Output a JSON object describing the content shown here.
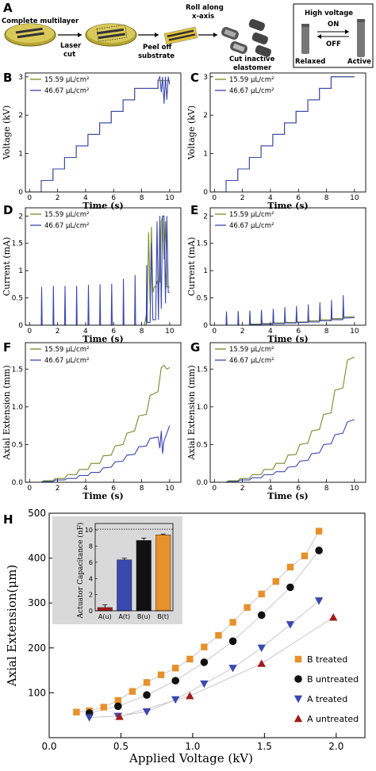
{
  "colors": {
    "green": "#7a8a2a",
    "blue": "#3a48b0",
    "orange": "#e8902a",
    "black": "#111111",
    "red": "#a01c1c",
    "inset_bg": "#d9d9d9"
  },
  "schematic": {
    "letter": "A",
    "complete_multilayer": "Complete multilayer",
    "laser": "Laser",
    "cut": "cut",
    "peel_off": "Peel off",
    "substrate": "substrate",
    "roll_along": "Roll along",
    "x_axis": "x-axis",
    "cut_inactive": "Cut inactive",
    "elastomer": "elastomer",
    "high_voltage": "High voltage",
    "on": "ON",
    "off": "OFF",
    "relaxed": "Relaxed",
    "active": "Active"
  },
  "legend": {
    "s1": "15.59 μL/cm²",
    "s2": "46.67 μL/cm²"
  },
  "chart_data": [
    {
      "panel": "B",
      "type": "line",
      "xlabel": "Time (s)",
      "ylabel": "Voltage (kV)",
      "xlim": [
        -0.3,
        10.8
      ],
      "ylim": [
        0,
        3.1
      ],
      "xticks": [
        0,
        2,
        4,
        6,
        8,
        10
      ],
      "yticks": [
        0,
        1,
        2,
        3
      ],
      "series": [
        {
          "name": "15.59 μL/cm²",
          "x": [
            0,
            0.83,
            0.83,
            1.67,
            1.67,
            2.5,
            2.5,
            3.33,
            3.33,
            4.17,
            4.17,
            5.0,
            5.0,
            5.83,
            5.83,
            6.67,
            6.67,
            7.5,
            7.5,
            8.33,
            8.33,
            9.17,
            9.17,
            10.0
          ],
          "y": [
            0,
            0,
            0.3,
            0.3,
            0.6,
            0.6,
            0.9,
            0.9,
            1.2,
            1.2,
            1.5,
            1.5,
            1.8,
            1.8,
            2.1,
            2.1,
            2.4,
            2.4,
            2.7,
            2.7,
            2.7,
            2.7,
            2.9,
            2.9
          ]
        },
        {
          "name": "46.67 μL/cm²",
          "x": [
            0,
            0.83,
            0.83,
            1.67,
            1.67,
            2.5,
            2.5,
            3.33,
            3.33,
            4.17,
            4.17,
            5.0,
            5.0,
            5.83,
            5.83,
            6.67,
            6.67,
            7.5,
            7.5,
            8.33,
            8.33,
            9.17,
            9.17,
            9.3,
            9.4,
            9.5,
            9.6,
            9.7,
            9.8,
            9.9,
            10.0
          ],
          "y": [
            0,
            0,
            0.3,
            0.3,
            0.6,
            0.6,
            0.9,
            0.9,
            1.2,
            1.2,
            1.5,
            1.5,
            1.8,
            1.8,
            2.1,
            2.1,
            2.4,
            2.4,
            2.7,
            2.7,
            2.7,
            2.7,
            2.9,
            3.0,
            2.6,
            3.0,
            2.3,
            3.0,
            2.4,
            3.0,
            2.8
          ]
        }
      ]
    },
    {
      "panel": "C",
      "type": "line",
      "xlabel": "Time (s)",
      "ylabel": "Voltage (kV)",
      "xlim": [
        -0.3,
        10.8
      ],
      "ylim": [
        0,
        3.1
      ],
      "xticks": [
        0,
        2,
        4,
        6,
        8,
        10
      ],
      "yticks": [
        0,
        1,
        2,
        3
      ],
      "series": [
        {
          "name": "15.59 μL/cm²",
          "x": [
            0,
            0.83,
            0.83,
            1.67,
            1.67,
            2.5,
            2.5,
            3.33,
            3.33,
            4.17,
            4.17,
            5.0,
            5.0,
            5.83,
            5.83,
            6.67,
            6.67,
            7.5,
            7.5,
            8.33,
            8.33,
            9.17,
            9.17,
            10.0
          ],
          "y": [
            0,
            0,
            0.3,
            0.3,
            0.6,
            0.6,
            0.9,
            0.9,
            1.2,
            1.2,
            1.5,
            1.5,
            1.8,
            1.8,
            2.1,
            2.1,
            2.4,
            2.4,
            2.7,
            2.7,
            3.0,
            3.0,
            3.0,
            3.0
          ]
        },
        {
          "name": "46.67 μL/cm²",
          "x": [
            0,
            0.83,
            0.83,
            1.67,
            1.67,
            2.5,
            2.5,
            3.33,
            3.33,
            4.17,
            4.17,
            5.0,
            5.0,
            5.83,
            5.83,
            6.67,
            6.67,
            7.5,
            7.5,
            8.33,
            8.33,
            9.17,
            9.17,
            10.0
          ],
          "y": [
            0,
            0,
            0.3,
            0.3,
            0.6,
            0.6,
            0.9,
            0.9,
            1.2,
            1.2,
            1.5,
            1.5,
            1.8,
            1.8,
            2.1,
            2.1,
            2.4,
            2.4,
            2.7,
            2.7,
            3.0,
            3.0,
            3.0,
            3.0
          ]
        }
      ]
    },
    {
      "panel": "D",
      "type": "line",
      "xlabel": "Time (s)",
      "ylabel": "Current (mA)",
      "xlim": [
        -0.3,
        10.8
      ],
      "ylim": [
        0,
        2.15
      ],
      "xticks": [
        0,
        2,
        4,
        6,
        8,
        10
      ],
      "yticks": [
        0,
        0.5,
        1.0,
        1.5,
        2.0
      ],
      "series": [
        {
          "name": "15.59 μL/cm²",
          "x": [
            0,
            8.2,
            8.4,
            8.5,
            8.6,
            8.7,
            8.8,
            8.9,
            9.0,
            9.1,
            9.2,
            9.3,
            9.4,
            9.5,
            9.6,
            9.7,
            9.8,
            9.9,
            10.0
          ],
          "y": [
            0,
            0,
            0.3,
            1.7,
            0.4,
            1.8,
            0.6,
            0.7,
            0.7,
            0.8,
            0.75,
            0.8,
            1.9,
            2.0,
            1.2,
            1.9,
            0.7,
            0.7,
            0.7
          ]
        },
        {
          "name": "46.67 μL/cm²",
          "x": [
            0,
            0.83,
            0.86,
            0.9,
            1.67,
            1.7,
            1.74,
            2.5,
            2.53,
            2.57,
            3.33,
            3.36,
            3.4,
            4.17,
            4.2,
            4.24,
            5.0,
            5.03,
            5.07,
            5.83,
            5.86,
            5.9,
            6.67,
            6.7,
            6.74,
            7.5,
            7.53,
            7.57,
            8.33,
            8.36,
            8.4,
            8.6,
            8.7,
            8.8,
            9.0,
            9.1,
            9.2,
            9.3,
            9.4,
            9.5,
            9.6,
            9.7,
            9.8,
            9.9,
            10.0
          ],
          "y": [
            0,
            0,
            0.7,
            0,
            0,
            0.72,
            0,
            0,
            0.72,
            0,
            0,
            0.72,
            0,
            0,
            0.74,
            0,
            0,
            0.75,
            0,
            0,
            0.76,
            0,
            0,
            0.85,
            0,
            0,
            0.92,
            0,
            0,
            1.1,
            0.05,
            0.05,
            1.5,
            0.1,
            0.1,
            1.9,
            0.1,
            2.0,
            0.3,
            2.0,
            2.0,
            0.4,
            2.0,
            0.6,
            0.6
          ]
        }
      ]
    },
    {
      "panel": "E",
      "type": "line",
      "xlabel": "Time (s)",
      "ylabel": "Current (mA)",
      "xlim": [
        -0.3,
        10.8
      ],
      "ylim": [
        0,
        2.15
      ],
      "xticks": [
        0,
        2,
        4,
        6,
        8,
        10
      ],
      "yticks": [
        0,
        0.5,
        1.0,
        1.5,
        2.0
      ],
      "series": [
        {
          "name": "15.59 μL/cm²",
          "x": [
            0,
            0.83,
            0.86,
            0.9,
            1.67,
            1.7,
            1.74,
            2.5,
            2.53,
            2.57,
            3.33,
            3.36,
            3.4,
            4.17,
            4.2,
            4.24,
            5.0,
            5.03,
            5.07,
            5.83,
            5.86,
            5.9,
            6.67,
            6.7,
            6.74,
            7.5,
            7.53,
            7.57,
            8.33,
            8.36,
            8.4,
            9.17,
            9.2,
            9.24,
            10.0
          ],
          "y": [
            0,
            0,
            0.22,
            0,
            0,
            0.23,
            0,
            0,
            0.23,
            0.02,
            0.02,
            0.24,
            0.03,
            0.03,
            0.25,
            0.04,
            0.04,
            0.27,
            0.05,
            0.05,
            0.28,
            0.06,
            0.06,
            0.3,
            0.08,
            0.08,
            0.33,
            0.1,
            0.1,
            0.36,
            0.12,
            0.12,
            0.42,
            0.15,
            0.16
          ]
        },
        {
          "name": "46.67 μL/cm²",
          "x": [
            0,
            0.83,
            0.86,
            0.9,
            1.67,
            1.7,
            1.74,
            2.5,
            2.53,
            2.57,
            3.33,
            3.36,
            3.4,
            4.17,
            4.2,
            4.24,
            5.0,
            5.03,
            5.07,
            5.83,
            5.86,
            5.9,
            6.67,
            6.7,
            6.74,
            7.5,
            7.53,
            7.57,
            8.33,
            8.36,
            8.4,
            9.17,
            9.2,
            9.24,
            10.0
          ],
          "y": [
            0,
            0,
            0.25,
            0,
            0,
            0.26,
            0,
            0,
            0.27,
            0.01,
            0.01,
            0.28,
            0.02,
            0.02,
            0.3,
            0.03,
            0.03,
            0.33,
            0.04,
            0.04,
            0.35,
            0.05,
            0.05,
            0.38,
            0.06,
            0.06,
            0.42,
            0.08,
            0.08,
            0.46,
            0.1,
            0.1,
            0.55,
            0.13,
            0.14
          ]
        }
      ]
    },
    {
      "panel": "F",
      "type": "line",
      "xlabel": "Time (s)",
      "ylabel": "Axial Extension (mm)",
      "xlim": [
        -0.3,
        10.8
      ],
      "ylim": [
        0,
        1.85
      ],
      "xticks": [
        0,
        2,
        4,
        6,
        8,
        10
      ],
      "yticks": [
        0.0,
        0.5,
        1.0,
        1.5
      ],
      "series": [
        {
          "name": "15.59 μL/cm²",
          "x": [
            0,
            0.83,
            1.0,
            1.67,
            1.85,
            2.5,
            2.7,
            3.33,
            3.55,
            4.17,
            4.4,
            5.0,
            5.25,
            5.83,
            6.1,
            6.67,
            6.95,
            7.5,
            7.8,
            8.33,
            8.6,
            9.17,
            9.4,
            9.6,
            9.8,
            10.0
          ],
          "y": [
            0,
            0,
            0.02,
            0.02,
            0.05,
            0.05,
            0.1,
            0.1,
            0.17,
            0.17,
            0.25,
            0.25,
            0.35,
            0.36,
            0.48,
            0.5,
            0.65,
            0.68,
            0.88,
            0.9,
            1.15,
            1.2,
            1.52,
            1.55,
            1.5,
            1.52
          ]
        },
        {
          "name": "46.67 μL/cm²",
          "x": [
            0,
            0.83,
            1.0,
            1.67,
            1.85,
            2.5,
            2.7,
            3.33,
            3.55,
            4.17,
            4.4,
            5.0,
            5.25,
            5.83,
            6.1,
            6.67,
            6.95,
            7.5,
            7.8,
            8.33,
            8.6,
            9.17,
            9.3,
            9.4,
            9.5,
            9.6,
            9.7,
            9.8,
            9.9,
            10.0
          ],
          "y": [
            0,
            0,
            0.01,
            0.01,
            0.03,
            0.03,
            0.05,
            0.05,
            0.09,
            0.09,
            0.13,
            0.13,
            0.19,
            0.2,
            0.27,
            0.28,
            0.36,
            0.37,
            0.47,
            0.48,
            0.58,
            0.6,
            0.45,
            0.68,
            0.38,
            0.55,
            0.6,
            0.65,
            0.7,
            0.75
          ]
        }
      ]
    },
    {
      "panel": "G",
      "type": "line",
      "xlabel": "Time (s)",
      "ylabel": "Axial Extension (mm)",
      "xlim": [
        -0.3,
        10.8
      ],
      "ylim": [
        0,
        1.85
      ],
      "xticks": [
        0,
        2,
        4,
        6,
        8,
        10
      ],
      "yticks": [
        0.0,
        0.5,
        1.0,
        1.5
      ],
      "series": [
        {
          "name": "15.59 μL/cm²",
          "x": [
            0,
            0.83,
            1.0,
            1.67,
            1.85,
            2.5,
            2.7,
            3.33,
            3.55,
            4.17,
            4.4,
            5.0,
            5.25,
            5.83,
            6.1,
            6.67,
            6.95,
            7.5,
            7.8,
            8.33,
            8.6,
            9.17,
            9.5,
            10.0
          ],
          "y": [
            0,
            0,
            0.02,
            0.02,
            0.05,
            0.05,
            0.1,
            0.1,
            0.17,
            0.17,
            0.25,
            0.25,
            0.36,
            0.37,
            0.5,
            0.52,
            0.68,
            0.7,
            0.9,
            0.92,
            1.22,
            1.25,
            1.62,
            1.66
          ]
        },
        {
          "name": "46.67 μL/cm²",
          "x": [
            0,
            0.83,
            1.0,
            1.67,
            1.85,
            2.5,
            2.7,
            3.33,
            3.55,
            4.17,
            4.4,
            5.0,
            5.25,
            5.83,
            6.1,
            6.67,
            6.95,
            7.5,
            7.8,
            8.33,
            8.6,
            9.17,
            9.5,
            10.0
          ],
          "y": [
            0,
            0,
            0.01,
            0.01,
            0.03,
            0.03,
            0.06,
            0.06,
            0.1,
            0.1,
            0.14,
            0.14,
            0.2,
            0.21,
            0.28,
            0.29,
            0.38,
            0.39,
            0.5,
            0.51,
            0.63,
            0.65,
            0.8,
            0.83
          ]
        }
      ]
    },
    {
      "panel": "H",
      "type": "scatter",
      "xlabel": "Applied Voltage (kV)",
      "ylabel": "Axial Extension(μm)",
      "xlim": [
        0.0,
        2.2
      ],
      "ylim": [
        0,
        500
      ],
      "xticks": [
        "0.0",
        "0.5",
        "1.0",
        "1.5",
        "2.0"
      ],
      "yticks": [
        100,
        200,
        300,
        400,
        500
      ],
      "series": [
        {
          "name": "B treated",
          "marker": "square",
          "x": [
            0.19,
            0.28,
            0.38,
            0.48,
            0.58,
            0.68,
            0.78,
            0.88,
            0.98,
            1.08,
            1.18,
            1.28,
            1.38,
            1.48,
            1.58,
            1.68,
            1.78,
            1.88
          ],
          "y": [
            57,
            60,
            68,
            83,
            103,
            123,
            140,
            155,
            175,
            202,
            228,
            257,
            290,
            320,
            348,
            380,
            405,
            460
          ]
        },
        {
          "name": "B untreated",
          "marker": "circle",
          "x": [
            0.28,
            0.48,
            0.68,
            0.88,
            1.08,
            1.28,
            1.48,
            1.68,
            1.88
          ],
          "y": [
            55,
            70,
            95,
            127,
            168,
            215,
            273,
            335,
            417
          ]
        },
        {
          "name": "A treated",
          "marker": "triangle-down",
          "x": [
            0.28,
            0.48,
            0.68,
            0.88,
            1.08,
            1.28,
            1.48,
            1.68,
            1.88
          ],
          "y": [
            45,
            48,
            58,
            85,
            120,
            155,
            200,
            252,
            305
          ]
        },
        {
          "name": "A untreated",
          "marker": "triangle-up",
          "x": [
            0.49,
            0.98,
            1.48,
            1.98
          ],
          "y": [
            47,
            93,
            165,
            268
          ]
        }
      ],
      "inset": {
        "type": "bar",
        "ylabel": "Actuator Capacitance (nF)",
        "ylim": [
          0,
          10.8
        ],
        "yticks": [
          0,
          2,
          4,
          6,
          8,
          10
        ],
        "categories": [
          "A(u)",
          "A(t)",
          "B(u)",
          "B(t)"
        ],
        "values": [
          0.4,
          6.3,
          8.7,
          9.4
        ],
        "errors": [
          0.35,
          0.2,
          0.3,
          0.1
        ],
        "reference_line": 10.1
      }
    }
  ]
}
